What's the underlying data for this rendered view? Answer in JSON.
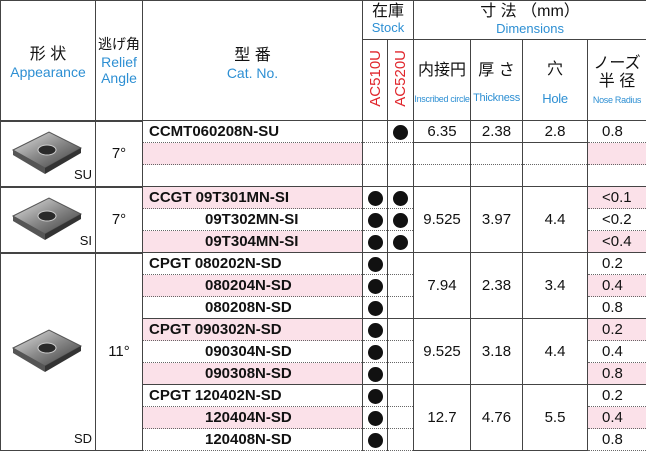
{
  "header": {
    "appearance": {
      "ja": "形 状",
      "en": "Appearance"
    },
    "relief": {
      "ja": "逃げ角",
      "en": [
        "Relief",
        "Angle"
      ]
    },
    "cat_no": {
      "ja": "型 番",
      "en": "Cat. No."
    },
    "stock": {
      "ja": "在庫",
      "en": "Stock",
      "grades": [
        "AC510U",
        "AC520U"
      ]
    },
    "dimensions": {
      "ja": "寸 法",
      "unit": "（mm）",
      "en": "Dimensions",
      "columns": [
        {
          "ja": [
            "内接円"
          ],
          "en": "Inscribed circle"
        },
        {
          "ja": [
            "厚 さ"
          ],
          "en": "Thickness"
        },
        {
          "ja": [
            "穴"
          ],
          "en": "Hole"
        },
        {
          "ja": [
            "ノーズ",
            "半 径"
          ],
          "en": "Nose Radius"
        }
      ]
    }
  },
  "groups": [
    {
      "shape": "SU",
      "relief_angle": "7°",
      "subgroups": [
        {
          "inscribed_circle": 6.35,
          "thickness": 2.38,
          "hole": 2.8,
          "rows": [
            {
              "cat_no": "CCMT060208N-SU",
              "stock": [
                false,
                true
              ],
              "nose_radius": 0.8
            },
            null,
            null
          ]
        }
      ]
    },
    {
      "shape": "SI",
      "relief_angle": "7°",
      "subgroups": [
        {
          "inscribed_circle": 9.525,
          "thickness": 3.97,
          "hole": 4.4,
          "rows": [
            {
              "cat_no": "CCGT 09T301MN-SI",
              "stock": [
                true,
                true
              ],
              "nose_radius": "<0.1"
            },
            {
              "cat_no": "09T302MN-SI",
              "stock": [
                true,
                true
              ],
              "nose_radius": "<0.2"
            },
            {
              "cat_no": "09T304MN-SI",
              "stock": [
                true,
                true
              ],
              "nose_radius": "<0.4"
            }
          ]
        }
      ]
    },
    {
      "shape": "SD",
      "relief_angle": "11°",
      "subgroups": [
        {
          "inscribed_circle": 7.94,
          "thickness": 2.38,
          "hole": 3.4,
          "rows": [
            {
              "cat_no": "CPGT 080202N-SD",
              "stock": [
                true,
                false
              ],
              "nose_radius": 0.2
            },
            {
              "cat_no": "080204N-SD",
              "stock": [
                true,
                false
              ],
              "nose_radius": 0.4
            },
            {
              "cat_no": "080208N-SD",
              "stock": [
                true,
                false
              ],
              "nose_radius": 0.8
            }
          ]
        },
        {
          "inscribed_circle": 9.525,
          "thickness": 3.18,
          "hole": 4.4,
          "rows": [
            {
              "cat_no": "CPGT 090302N-SD",
              "stock": [
                true,
                false
              ],
              "nose_radius": 0.2
            },
            {
              "cat_no": "090304N-SD",
              "stock": [
                true,
                false
              ],
              "nose_radius": 0.4
            },
            {
              "cat_no": "090308N-SD",
              "stock": [
                true,
                false
              ],
              "nose_radius": 0.8
            }
          ]
        },
        {
          "inscribed_circle": 12.7,
          "thickness": 4.76,
          "hole": 5.5,
          "rows": [
            {
              "cat_no": "CPGT 120402N-SD",
              "stock": [
                true,
                false
              ],
              "nose_radius": 0.2
            },
            {
              "cat_no": "120404N-SD",
              "stock": [
                true,
                false
              ],
              "nose_radius": 0.4
            },
            {
              "cat_no": "120408N-SD",
              "stock": [
                true,
                false
              ],
              "nose_radius": 0.8
            }
          ]
        }
      ]
    }
  ]
}
